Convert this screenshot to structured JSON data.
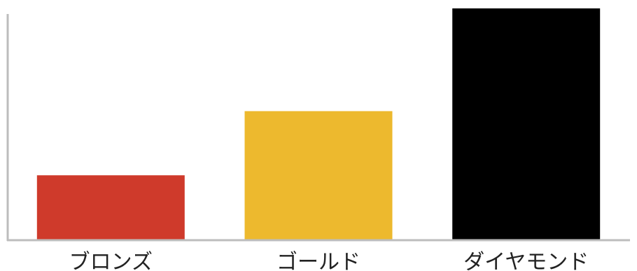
{
  "chart_data": {
    "type": "bar",
    "title": "",
    "xlabel": "",
    "ylabel": "",
    "categories": [
      "ブロンズ",
      "ゴールド",
      "ダイヤモンド"
    ],
    "values": [
      1,
      2,
      3.6
    ],
    "ylim": [
      0,
      3.6
    ],
    "grid": false,
    "legend": "none",
    "colors": [
      "#cf3a2b",
      "#edb92e",
      "#000000"
    ],
    "axis_color": "#bdbdbd"
  }
}
